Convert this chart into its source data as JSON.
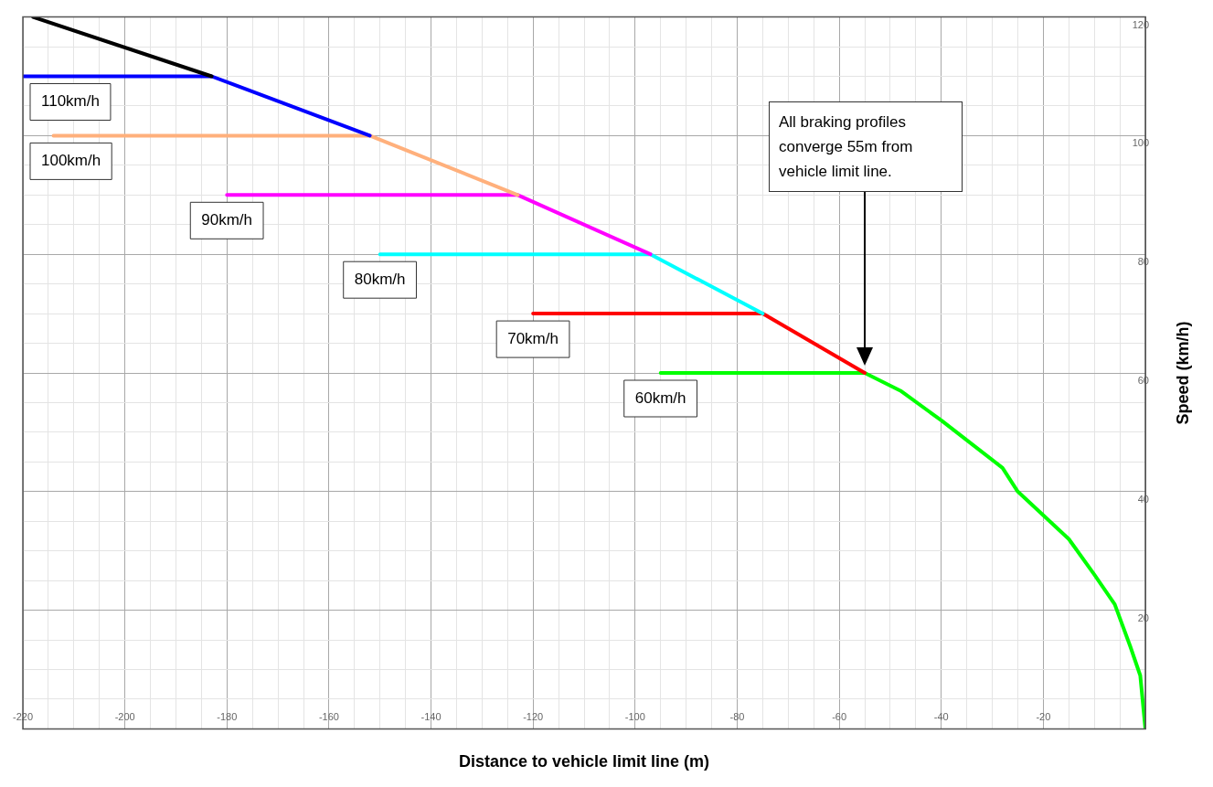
{
  "chart_data": {
    "type": "line",
    "xlabel": "Distance to vehicle limit line (m)",
    "ylabel": "Speed (km/h)",
    "xlim": [
      -220,
      0
    ],
    "ylim": [
      0,
      120
    ],
    "xticks": [
      -220,
      {
        "value": -215,
        "label": null
      },
      {
        "value": -210,
        "label": null
      },
      {
        "value": -205,
        "label": null
      },
      -200,
      {
        "value": -195,
        "label": null
      },
      {
        "value": -190,
        "label": null
      },
      {
        "value": -185,
        "label": null
      },
      -180,
      {
        "value": -175,
        "label": null
      },
      {
        "value": -170,
        "label": null
      },
      {
        "value": -165,
        "label": null
      },
      -160,
      {
        "value": -155,
        "label": null
      },
      {
        "value": -150,
        "label": null
      },
      {
        "value": -145,
        "label": null
      },
      -140,
      {
        "value": -135,
        "label": null
      },
      {
        "value": -130,
        "label": null
      },
      {
        "value": -125,
        "label": null
      },
      -120,
      {
        "value": -115,
        "label": null
      },
      {
        "value": -110,
        "label": null
      },
      {
        "value": -105,
        "label": null
      },
      -100,
      {
        "value": -95,
        "label": null
      },
      {
        "value": -90,
        "label": null
      },
      {
        "value": -85,
        "label": null
      },
      -80,
      {
        "value": -75,
        "label": null
      },
      {
        "value": -70,
        "label": null
      },
      {
        "value": -65,
        "label": null
      },
      -60,
      {
        "value": -55,
        "label": null
      },
      {
        "value": -50,
        "label": null
      },
      {
        "value": -45,
        "label": null
      },
      -40,
      {
        "value": -35,
        "label": null
      },
      {
        "value": -30,
        "label": null
      },
      {
        "value": -25,
        "label": null
      },
      -20,
      {
        "value": -15,
        "label": null
      },
      {
        "value": -10,
        "label": null
      },
      {
        "value": -5,
        "label": null
      },
      {
        "value": 0,
        "label": null
      }
    ],
    "yticks": [
      {
        "value": 0,
        "label": null
      },
      {
        "value": 5,
        "label": null
      },
      {
        "value": 10,
        "label": null
      },
      {
        "value": 15,
        "label": null
      },
      20,
      {
        "value": 25,
        "label": null
      },
      {
        "value": 30,
        "label": null
      },
      {
        "value": 35,
        "label": null
      },
      40,
      {
        "value": 45,
        "label": null
      },
      {
        "value": 50,
        "label": null
      },
      {
        "value": 55,
        "label": null
      },
      60,
      {
        "value": 65,
        "label": null
      },
      {
        "value": 70,
        "label": null
      },
      {
        "value": 75,
        "label": null
      },
      80,
      {
        "value": 85,
        "label": null
      },
      {
        "value": 90,
        "label": null
      },
      {
        "value": 95,
        "label": null
      },
      100,
      {
        "value": 105,
        "label": null
      },
      {
        "value": 110,
        "label": null
      },
      {
        "value": 115,
        "label": null
      },
      120
    ],
    "grid": true,
    "legend": false,
    "series": [
      {
        "color": "#000000",
        "x": [
          -218,
          -183
        ],
        "values": [
          120,
          110
        ]
      },
      {
        "name": "110km/h",
        "color": "#0000ff",
        "x": [
          -220,
          -183,
          -152
        ],
        "values": [
          110,
          110,
          100
        ]
      },
      {
        "name": "100km/h",
        "color": "#ffb07c",
        "x": [
          -214,
          -152,
          -123
        ],
        "values": [
          100,
          100,
          90
        ]
      },
      {
        "name": "90km/h",
        "color": "#ff00ff",
        "x": [
          -180,
          -123,
          -97
        ],
        "values": [
          90,
          90,
          80
        ]
      },
      {
        "name": "80km/h",
        "color": "#00ffff",
        "x": [
          -150,
          -97,
          -75
        ],
        "values": [
          80,
          80,
          70
        ]
      },
      {
        "name": "70km/h",
        "color": "#ff0000",
        "x": [
          -120,
          -75,
          -55
        ],
        "values": [
          70,
          70,
          60
        ]
      },
      {
        "name": "60km/h",
        "color": "#00ff00",
        "x": [
          -95,
          -55,
          -48,
          -40,
          -34,
          -28,
          -25,
          -20,
          -15,
          -10,
          -6,
          -3,
          -1,
          0
        ],
        "values": [
          60,
          60,
          57,
          52,
          48,
          44,
          40,
          36,
          32,
          26,
          21,
          14,
          9,
          0
        ]
      }
    ],
    "annotations": [
      "All braking profiles converge 55m from vehicle limit line."
    ]
  }
}
